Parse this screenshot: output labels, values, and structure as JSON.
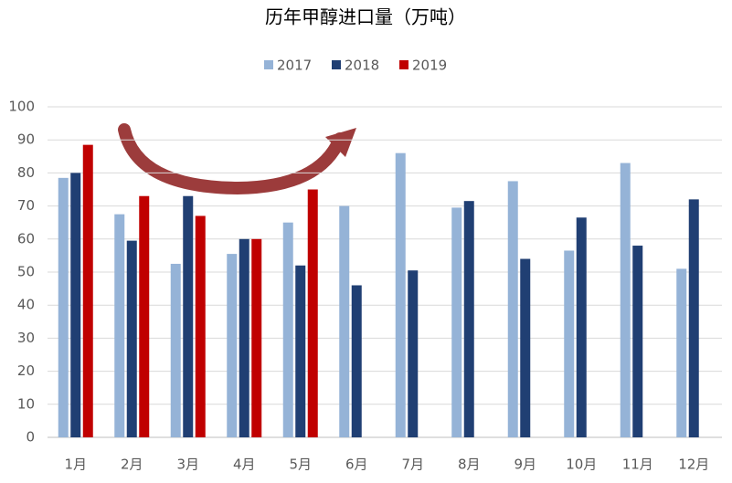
{
  "chart_data": {
    "type": "bar",
    "title": "历年甲醇进口量（万吨）",
    "categories": [
      "1月",
      "2月",
      "3月",
      "4月",
      "5月",
      "6月",
      "7月",
      "8月",
      "9月",
      "10月",
      "11月",
      "12月"
    ],
    "series": [
      {
        "name": "2017",
        "color": "#95b3d7",
        "values": [
          78.5,
          67.5,
          52.5,
          55.5,
          65,
          70,
          86,
          69.5,
          77.5,
          56.5,
          83,
          51
        ]
      },
      {
        "name": "2018",
        "color": "#203f73",
        "values": [
          80,
          59.5,
          73,
          60,
          52,
          46,
          50.5,
          71.5,
          54,
          66.5,
          58,
          72
        ]
      },
      {
        "name": "2019",
        "color": "#c00000",
        "values": [
          88.5,
          73,
          67,
          60,
          75,
          null,
          null,
          null,
          null,
          null,
          null,
          null
        ]
      }
    ],
    "ylim": [
      0,
      100
    ],
    "yticks": [
      0,
      10,
      20,
      30,
      40,
      50,
      60,
      70,
      80,
      90,
      100
    ],
    "grid": true,
    "legend": "top"
  }
}
